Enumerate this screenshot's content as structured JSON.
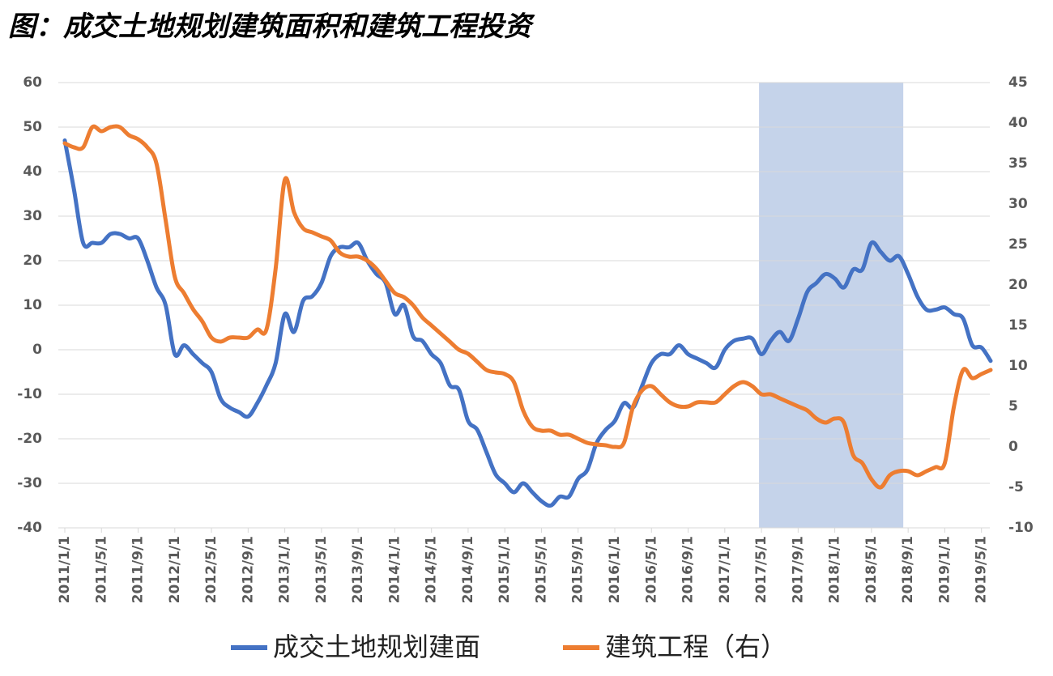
{
  "chart_data": {
    "type": "line",
    "title": "图：成交土地规划建筑面积和建筑工程投资",
    "categories": [
      "2011/1/1",
      null,
      null,
      null,
      "2011/5/1",
      null,
      null,
      null,
      "2011/9/1",
      null,
      null,
      null,
      "2012/1/1",
      null,
      null,
      null,
      "2012/5/1",
      null,
      null,
      null,
      "2012/9/1",
      null,
      null,
      null,
      "2013/1/1",
      null,
      null,
      null,
      "2013/5/1",
      null,
      null,
      null,
      "2013/9/1",
      null,
      null,
      null,
      "2014/1/1",
      null,
      null,
      null,
      "2014/5/1",
      null,
      null,
      null,
      "2014/9/1",
      null,
      null,
      null,
      "2015/1/1",
      null,
      null,
      null,
      "2015/5/1",
      null,
      null,
      null,
      "2015/9/1",
      null,
      null,
      null,
      "2016/1/1",
      null,
      null,
      null,
      "2016/5/1",
      null,
      null,
      null,
      "2016/9/1",
      null,
      null,
      null,
      "2017/1/1",
      null,
      null,
      null,
      "2017/5/1",
      null,
      null,
      null,
      "2017/9/1",
      null,
      null,
      null,
      "2018/1/1",
      null,
      null,
      null,
      "2018/5/1",
      null,
      null,
      null,
      "2018/9/1",
      null,
      null,
      null,
      "2019/1/1",
      null,
      null,
      null,
      "2019/5/1",
      null
    ],
    "series": [
      {
        "name": "成交土地规划建面",
        "color": "#4472c4",
        "values": [
          47,
          36,
          24,
          24,
          24,
          26,
          26,
          25,
          25,
          20,
          14,
          10,
          -1,
          1,
          -1,
          -3,
          -5,
          -11,
          -13,
          -14,
          -15,
          -12,
          -8,
          -3,
          8,
          4,
          11,
          12,
          15,
          21,
          23,
          23,
          24,
          20,
          17,
          15,
          8,
          10,
          3,
          2,
          -1,
          -3,
          -8,
          -9,
          -16,
          -18,
          -23,
          -28,
          -30,
          -32,
          -30,
          -32,
          -34,
          -35,
          -33,
          -33,
          -29,
          -27,
          -21,
          -18,
          -16,
          -12,
          -13,
          -8,
          -3,
          -1,
          -1,
          1,
          -1,
          -2,
          -3,
          -4,
          0,
          2,
          2.5,
          2.5,
          -1,
          2,
          4,
          2,
          7,
          13,
          15,
          17,
          16,
          14,
          18,
          18,
          24,
          22,
          20,
          21,
          17,
          12,
          9,
          9,
          9.5,
          8,
          7,
          1,
          0.5,
          -2.5
        ]
      },
      {
        "name": "建筑工程（右）",
        "color": "#ed7d31",
        "axis": "y2",
        "values": [
          37.5,
          37,
          37,
          39.5,
          39,
          39.5,
          39.5,
          38.5,
          38,
          37,
          35,
          28,
          21,
          19,
          17,
          15.5,
          13.5,
          13,
          13.5,
          13.5,
          13.5,
          14.5,
          14.5,
          22,
          33,
          29,
          27,
          26.5,
          26,
          25.5,
          24,
          23.5,
          23.5,
          23,
          22,
          20.5,
          19,
          18.5,
          17.5,
          16,
          15,
          14,
          13,
          12,
          11.5,
          10.5,
          9.5,
          9.2,
          9,
          8,
          4.5,
          2.5,
          2,
          2,
          1.5,
          1.5,
          1,
          0.5,
          0.3,
          0.2,
          0,
          0.5,
          5,
          7,
          7.5,
          6.5,
          5.5,
          5,
          5,
          5.5,
          5.5,
          5.5,
          6.5,
          7.5,
          8,
          7.5,
          6.5,
          6.5,
          6,
          5.5,
          5,
          4.5,
          3.5,
          3,
          3.5,
          3,
          -1,
          -2,
          -4,
          -5,
          -3.5,
          -3,
          -3,
          -3.5,
          -3,
          -2.5,
          -2,
          5,
          9.5,
          8.5,
          9,
          9.5
        ]
      }
    ],
    "ylim": [
      -40,
      60
    ],
    "yticks": [
      -40,
      -30,
      -20,
      -10,
      0,
      10,
      20,
      30,
      40,
      50,
      60
    ],
    "y2lim": [
      -10,
      45
    ],
    "y2ticks": [
      -10,
      -5,
      0,
      5,
      10,
      15,
      20,
      25,
      30,
      35,
      40,
      45
    ],
    "grid": true,
    "highlight": {
      "start": "2017/5/1",
      "end": "2018/9/1",
      "color": "#c5d3ea"
    },
    "legend": "bottom"
  }
}
